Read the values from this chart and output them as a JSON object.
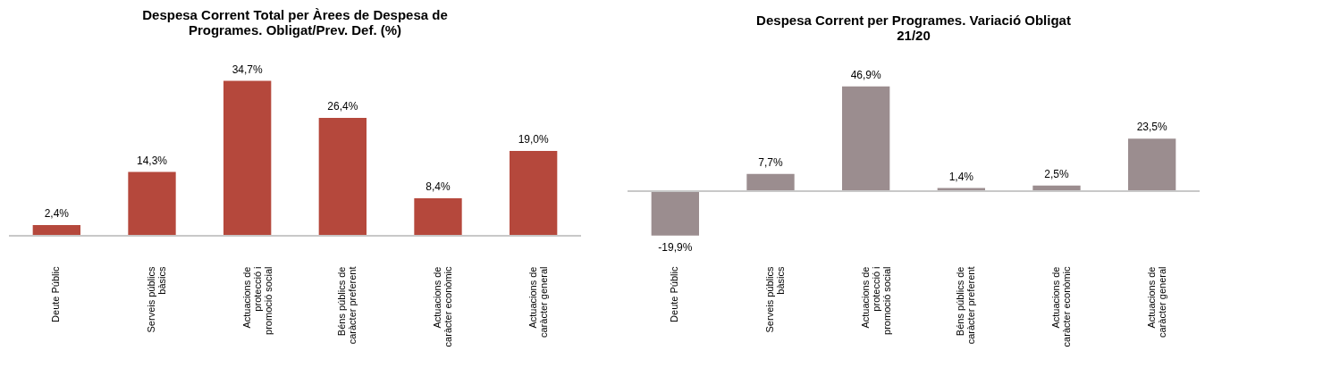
{
  "chart_data": [
    {
      "type": "bar",
      "title": "Despesa Corrent Total per Àrees de Despesa de Programes. Obligat/Prev. Def. (%)",
      "categories": [
        "Deute Públic",
        "Serveis públics bàsics",
        "Actuacions de protecció i promoció social",
        "Béns públics de caràcter preferent",
        "Actuacions de caràcter econòmic",
        "Actuacions de caràcter general"
      ],
      "values": [
        2.4,
        14.3,
        34.7,
        26.4,
        8.4,
        19.0
      ],
      "value_labels": [
        "2,4%",
        "14,3%",
        "34,7%",
        "26,4%",
        "8,4%",
        "19,0%"
      ],
      "color": "#b5483c"
    },
    {
      "type": "bar",
      "title": "Despesa Corrent per Programes. Variació Obligat 21/20",
      "categories": [
        "Deute Públic",
        "Serveis públics bàsics",
        "Actuacions de protecció i promoció social",
        "Béns públics de caràcter preferent",
        "Actuacions de caràcter econòmic",
        "Actuacions de caràcter general"
      ],
      "values": [
        -19.9,
        7.7,
        46.9,
        1.4,
        2.5,
        23.5
      ],
      "value_labels": [
        "-19,9%",
        "7,7%",
        "46,9%",
        "1,4%",
        "2,5%",
        "23,5%"
      ],
      "color": "#9b8d8f"
    }
  ]
}
